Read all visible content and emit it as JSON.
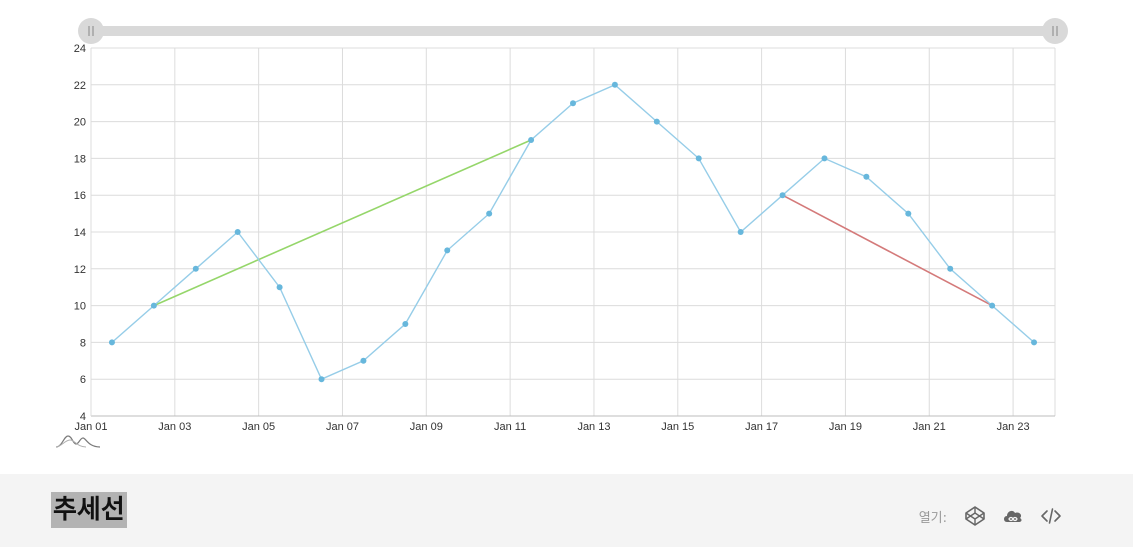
{
  "chart_data": {
    "type": "line",
    "x": [
      "Jan 01",
      "Jan 02",
      "Jan 03",
      "Jan 04",
      "Jan 05",
      "Jan 06",
      "Jan 07",
      "Jan 08",
      "Jan 09",
      "Jan 10",
      "Jan 11",
      "Jan 12",
      "Jan 13",
      "Jan 14",
      "Jan 15",
      "Jan 16",
      "Jan 17",
      "Jan 18",
      "Jan 19",
      "Jan 20",
      "Jan 21",
      "Jan 22",
      "Jan 23"
    ],
    "series": [
      {
        "values": [
          8,
          10,
          12,
          14,
          11,
          6,
          7,
          9,
          13,
          15,
          19,
          21,
          22,
          20,
          18,
          14,
          16,
          18,
          17,
          15,
          12,
          10,
          8
        ],
        "color": "#96cde8"
      }
    ],
    "trend_lines": [
      {
        "from": {
          "x": "Jan 02",
          "y": 10
        },
        "to": {
          "x": "Jan 11",
          "y": 19
        },
        "color": "#95d66a"
      },
      {
        "from": {
          "x": "Jan 17",
          "y": 16
        },
        "to": {
          "x": "Jan 22",
          "y": 10
        },
        "color": "#d47a7a"
      }
    ],
    "xlim": [
      "Jan 01",
      "Jan 24"
    ],
    "ylim": [
      4,
      24
    ],
    "yticks": [
      4,
      6,
      8,
      10,
      12,
      14,
      16,
      18,
      20,
      22,
      24
    ],
    "xticks": [
      "Jan 01",
      "Jan 03",
      "Jan 05",
      "Jan 07",
      "Jan 09",
      "Jan 11",
      "Jan 13",
      "Jan 15",
      "Jan 17",
      "Jan 19",
      "Jan 21",
      "Jan 23"
    ],
    "grid": true,
    "scrollbar_range": [
      0,
      1
    ],
    "point_color": "#67b7dc"
  },
  "footer": {
    "title": "추세선",
    "open_label": "열기:",
    "icons": [
      "codepen-icon",
      "jsfiddle-icon",
      "code-icon"
    ]
  }
}
